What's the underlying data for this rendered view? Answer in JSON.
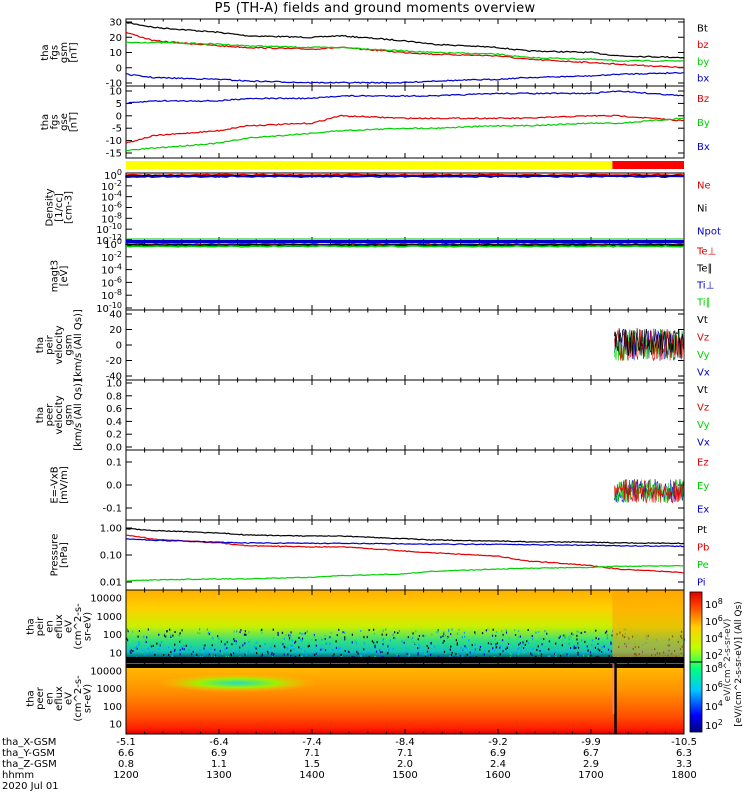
{
  "title": "P5 (TH-A) fields and ground moments overview",
  "date": "2020 Jul 01",
  "colors": {
    "black": "#000000",
    "red": "#e00000",
    "green": "#00d000",
    "blue": "#0000cc",
    "yellow": "#ffff00",
    "brightred": "#ff0000"
  },
  "chart_data": [
    {
      "id": "fgs-gsm",
      "type": "line",
      "ylabel": [
        "tha",
        "fgs",
        "gsm",
        "[nT]"
      ],
      "ylim": [
        -10,
        30
      ],
      "yticks": [
        "30",
        "20",
        "10",
        "0",
        "-10"
      ],
      "x": [
        1200,
        1230,
        1300,
        1330,
        1400,
        1430,
        1500,
        1530,
        1600,
        1630,
        1700,
        1730,
        1800
      ],
      "series": [
        {
          "name": "Bt",
          "color": "black",
          "values": [
            28,
            25,
            22,
            20,
            19,
            20,
            17,
            15,
            13,
            11,
            10,
            8,
            7
          ]
        },
        {
          "name": "bz",
          "color": "red",
          "values": [
            22,
            17,
            14,
            13,
            12,
            13,
            10,
            9,
            8,
            6,
            4,
            3,
            1
          ]
        },
        {
          "name": "by",
          "color": "green",
          "values": [
            16,
            16,
            15,
            14,
            13,
            13,
            11,
            10,
            9,
            7,
            6,
            5,
            5
          ]
        },
        {
          "name": "bx",
          "color": "blue",
          "values": [
            -3,
            -5,
            -6,
            -7,
            -8,
            -8,
            -8,
            -7,
            -6,
            -5,
            -4,
            -3,
            -2
          ]
        }
      ]
    },
    {
      "id": "fgs-gse",
      "type": "line",
      "ylabel": [
        "tha",
        "fgs",
        "gse",
        "[nT]"
      ],
      "ylim": [
        -17,
        12
      ],
      "yticks": [
        "10",
        "5",
        "0",
        "-5",
        "-10",
        "-15"
      ],
      "x": [
        1200,
        1230,
        1300,
        1330,
        1400,
        1430,
        1500,
        1530,
        1600,
        1630,
        1700,
        1730,
        1800
      ],
      "series": [
        {
          "name": "Bz",
          "color": "red",
          "values": [
            -11,
            -8,
            -6,
            -4,
            -3,
            0,
            -1,
            -1,
            -1,
            -1,
            0,
            0,
            -2
          ]
        },
        {
          "name": "By",
          "color": "green",
          "values": [
            -14,
            -13,
            -11,
            -9,
            -7,
            -6,
            -5,
            -5,
            -4,
            -4,
            -3,
            -3,
            -1
          ]
        },
        {
          "name": "Bx",
          "color": "blue",
          "values": [
            5,
            6,
            6,
            7,
            7,
            8,
            8,
            8,
            9,
            9,
            9,
            10,
            8
          ]
        }
      ]
    },
    {
      "id": "mode-bar",
      "type": "bar",
      "segments": [
        {
          "color": "yellow",
          "from": 1200,
          "to": 1723
        },
        {
          "color": "brightred",
          "from": 1723,
          "to": 1800
        }
      ]
    },
    {
      "id": "density",
      "type": "line",
      "ylabel": [
        "Density",
        "[1/cc]",
        "[cm-3]"
      ],
      "ylim": [
        -12,
        0
      ],
      "ytick_exponents": [
        0,
        -2,
        -4,
        -6,
        -8,
        -10,
        -12
      ],
      "series": [
        {
          "name": "Ne",
          "color": "red"
        },
        {
          "name": "Ni",
          "color": "black"
        },
        {
          "name": "Npot",
          "color": "blue"
        }
      ]
    },
    {
      "id": "temperature",
      "type": "line",
      "ylabel": [
        "magt3",
        "[eV]"
      ],
      "ylim": [
        -10,
        0
      ],
      "ytick_exponents": [
        0,
        -2,
        -4,
        -6,
        -8,
        -10
      ],
      "series": [
        {
          "name": "Te⊥",
          "color": "red"
        },
        {
          "name": "Te∥",
          "color": "black"
        },
        {
          "name": "Ti⊥",
          "color": "blue"
        },
        {
          "name": "Ti∥",
          "color": "green"
        }
      ]
    },
    {
      "id": "peir-velocity",
      "type": "line",
      "ylabel": [
        "tha",
        "peir",
        "velocity",
        "gsm",
        "[km/s (All Qs)]"
      ],
      "ylim": [
        -40,
        40
      ],
      "yticks": [
        "40",
        "20",
        "0",
        "-20",
        "-40"
      ],
      "data_from": 1725,
      "series": [
        {
          "name": "Vt",
          "color": "black"
        },
        {
          "name": "Vz",
          "color": "red"
        },
        {
          "name": "Vy",
          "color": "green"
        },
        {
          "name": "Vx",
          "color": "blue"
        }
      ]
    },
    {
      "id": "peer-velocity",
      "type": "line",
      "ylabel": [
        "tha",
        "peer",
        "velocity",
        "gsm",
        "[km/s (All Qs)]"
      ],
      "ylim": [
        0,
        1
      ],
      "yticks": [
        "1.0",
        "0.8",
        "0.6",
        "0.4",
        "0.2",
        "0.0"
      ],
      "series": [
        {
          "name": "Vt",
          "color": "black"
        },
        {
          "name": "Vz",
          "color": "red"
        },
        {
          "name": "Vy",
          "color": "green"
        },
        {
          "name": "Vx",
          "color": "blue"
        }
      ]
    },
    {
      "id": "efield",
      "type": "line",
      "ylabel": [
        "E=-VxB",
        "[mV/m]"
      ],
      "ylim": [
        -0.1,
        0.1
      ],
      "yticks": [
        "0.1",
        "0.0",
        "-0.1"
      ],
      "extra_ticks": [
        "0.1",
        "0.0",
        "-0.1"
      ],
      "data_from": 1725,
      "series": [
        {
          "name": "Ez",
          "color": "red"
        },
        {
          "name": "Ey",
          "color": "green"
        },
        {
          "name": "Ex",
          "color": "blue"
        }
      ]
    },
    {
      "id": "pressure",
      "type": "line",
      "yscale": "log",
      "ylabel": [
        "Pressure",
        "[nPa]"
      ],
      "ylim": [
        0.01,
        1.0
      ],
      "yticks": [
        "1.00",
        "0.10",
        "0.01"
      ],
      "x": [
        1200,
        1230,
        1300,
        1330,
        1400,
        1430,
        1500,
        1530,
        1600,
        1630,
        1700,
        1730,
        1800
      ],
      "series": [
        {
          "name": "Pt",
          "color": "black",
          "values": [
            0.95,
            0.8,
            0.65,
            0.55,
            0.5,
            0.5,
            0.4,
            0.36,
            0.33,
            0.31,
            0.3,
            0.28,
            0.27
          ]
        },
        {
          "name": "Pb",
          "color": "red",
          "values": [
            0.55,
            0.38,
            0.28,
            0.22,
            0.2,
            0.2,
            0.14,
            0.12,
            0.09,
            0.06,
            0.04,
            0.03,
            0.022
          ]
        },
        {
          "name": "Pe",
          "color": "green",
          "values": [
            0.011,
            0.012,
            0.013,
            0.013,
            0.015,
            0.017,
            0.02,
            0.025,
            0.03,
            0.032,
            0.035,
            0.038,
            0.04
          ]
        },
        {
          "name": "Pi",
          "color": "blue",
          "values": [
            0.4,
            0.35,
            0.3,
            0.28,
            0.27,
            0.27,
            0.26,
            0.25,
            0.25,
            0.24,
            0.23,
            0.22,
            0.21
          ]
        }
      ]
    },
    {
      "id": "peir-spectrogram",
      "type": "heatmap",
      "ylabel": [
        "tha",
        "peir",
        "en",
        "eflux",
        "eV",
        "(cm^2-s-",
        "sr-eV)"
      ],
      "yticks": [
        "10000",
        "1000",
        "100",
        "10"
      ]
    },
    {
      "id": "peer-spectrogram",
      "type": "heatmap",
      "ylabel": [
        "tha",
        "peer",
        "en",
        "eflux",
        "eV",
        "(cm^2-s-",
        "sr-eV)"
      ],
      "yticks": [
        "10000",
        "1000",
        "100",
        "10"
      ]
    }
  ],
  "colorbar": {
    "label": "[eV/(cm^2-s-sr-eV)] (All Qs)",
    "label_mirror": "eV/(cm^2-s-sr-eV)",
    "ticks_upper": [
      "10^8",
      "10^6",
      "10^4",
      "10^2"
    ],
    "ticks_lower": [
      "10^8",
      "10^6",
      "10^4",
      "10^2"
    ],
    "exp_upper": [
      "8",
      "6",
      "4",
      "2"
    ],
    "exp_lower": [
      "8",
      "6",
      "4",
      "2"
    ]
  },
  "xaxis": {
    "rows": [
      {
        "label": "tha_X-GSM",
        "values": [
          "-5.1",
          "-6.4",
          "-7.4",
          "-8.4",
          "-9.2",
          "-9.9",
          "-10.5"
        ]
      },
      {
        "label": "tha_Y-GSM",
        "values": [
          "6.6",
          "6.9",
          "7.1",
          "7.1",
          "6.9",
          "6.7",
          "6.3"
        ]
      },
      {
        "label": "tha_Z-GSM",
        "values": [
          "0.8",
          "1.1",
          "1.5",
          "2.0",
          "2.4",
          "2.9",
          "3.3"
        ]
      },
      {
        "label": "hhmm",
        "values": [
          "1200",
          "1300",
          "1400",
          "1500",
          "1600",
          "1700",
          "1800"
        ]
      }
    ]
  }
}
